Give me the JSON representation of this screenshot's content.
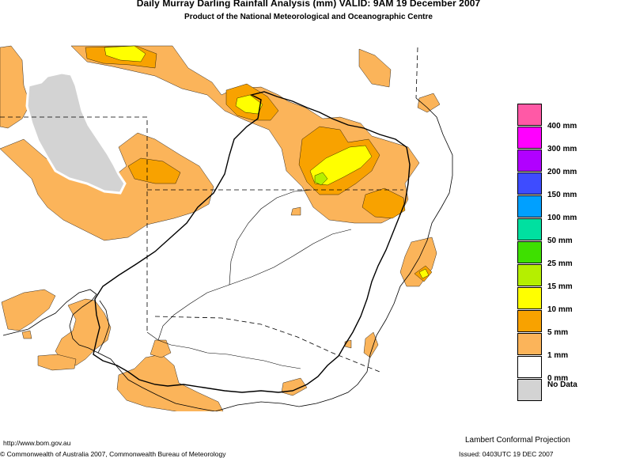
{
  "title": "Daily Murray Darling Rainfall Analysis (mm)  VALID: 9AM 19 December 2007",
  "subtitle": "Product of the National Meteorological and Oceanographic Centre",
  "colors": {
    "r1": "#fbb45a",
    "r5": "#f8a200",
    "r10": "#ffff00",
    "r15": "#b5ef00",
    "nodata": "#d3d3d3",
    "border": "#000000"
  },
  "legend": [
    {
      "label": "400 mm",
      "color": "#ff59a6"
    },
    {
      "label": "300 mm",
      "color": "#ff00ff"
    },
    {
      "label": "200 mm",
      "color": "#b100ff"
    },
    {
      "label": "150 mm",
      "color": "#3e4cff"
    },
    {
      "label": "100 mm",
      "color": "#00a0ff"
    },
    {
      "label": "50 mm",
      "color": "#00e0a0"
    },
    {
      "label": "25 mm",
      "color": "#3ee000"
    },
    {
      "label": "15 mm",
      "color": "#b5ef00"
    },
    {
      "label": "10 mm",
      "color": "#ffff00"
    },
    {
      "label": "5 mm",
      "color": "#f8a200"
    },
    {
      "label": "1 mm",
      "color": "#fbb45a"
    },
    {
      "label": "0 mm",
      "color": "#ffffff"
    },
    {
      "label": "No Data",
      "color": "#d3d3d3"
    }
  ],
  "footer": {
    "url": "http://www.bom.gov.au",
    "copyright": "© Commonwealth of Australia 2007, Commonwealth Bureau of Meteorology",
    "projection": "Lambert Conformal Projection",
    "issued": "Issued: 0403UTC 19 DEC 2007"
  }
}
